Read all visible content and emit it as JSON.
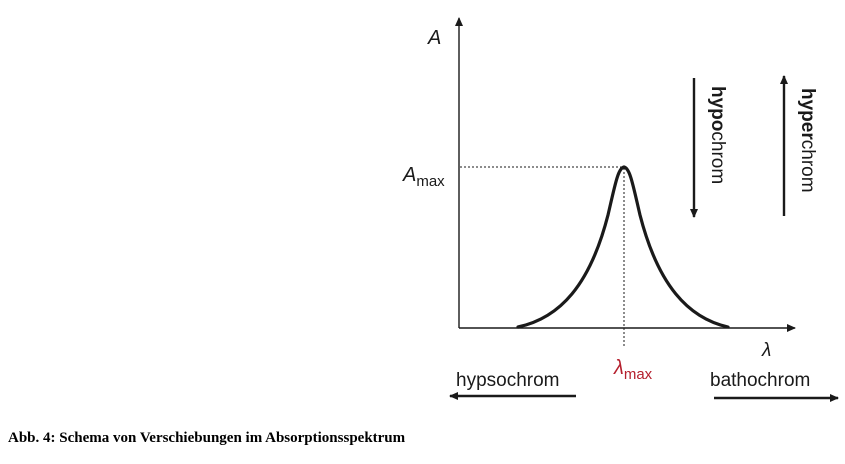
{
  "figure": {
    "axis_y_label": "A",
    "axis_x_label": "λ",
    "a_max_label": "A",
    "a_max_subscript": "max",
    "lambda_max_label": "λ",
    "lambda_max_subscript": "max",
    "hypochrom": {
      "bold_part": "hypo",
      "rest_part": "chrom",
      "direction": "down"
    },
    "hyperchrom": {
      "bold_part": "hyper",
      "rest_part": "chrom",
      "direction": "up"
    },
    "hypsochrom": {
      "text": "hypsochrom",
      "direction": "left"
    },
    "bathochrom": {
      "text": "bathochrom",
      "direction": "right"
    },
    "colors": {
      "ink": "#1a1a1a",
      "lambda_max": "#b5202e"
    }
  },
  "caption": "Abb. 4: Schema von Verschiebungen im Absorptionsspektrum"
}
